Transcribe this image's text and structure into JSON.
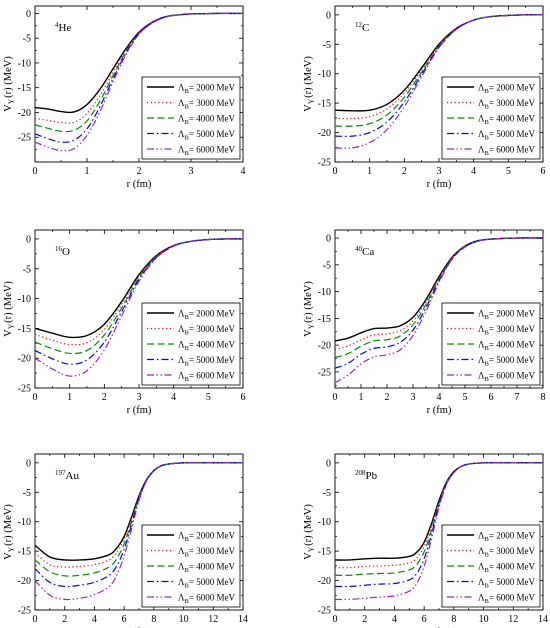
{
  "colors": {
    "axis": "#000000",
    "series": [
      "#000000",
      "#ff0000",
      "#009000",
      "#0000ff",
      "#a020d0"
    ]
  },
  "chart_data": [
    {
      "type": "line",
      "nucleus": {
        "mass": "4",
        "symbol": "He"
      },
      "xlabel": "r  (fm)",
      "ylabel": {
        "main": "V",
        "sub": "Y",
        "rest": "(r)  (MeV)"
      },
      "xlim": [
        0,
        4
      ],
      "ylim": [
        -30,
        1.5
      ],
      "xticks": [
        0,
        1,
        2,
        3,
        4
      ],
      "yticks": [
        0,
        -5,
        -10,
        -15,
        -20,
        -25
      ],
      "legend": {
        "position": "bottom-right"
      },
      "x": [
        0,
        0.25,
        0.5,
        0.75,
        1.0,
        1.25,
        1.5,
        1.75,
        2.0,
        2.25,
        2.5,
        2.75,
        3.0,
        3.5,
        4.0
      ],
      "series": [
        {
          "name": "2000 MeV",
          "values": [
            -19.0,
            -19.3,
            -19.8,
            -19.9,
            -18.4,
            -15.3,
            -11.2,
            -7.1,
            -3.8,
            -1.8,
            -0.7,
            -0.3,
            -0.1,
            0,
            0
          ]
        },
        {
          "name": "3000 MeV",
          "values": [
            -21.2,
            -21.6,
            -22.0,
            -22.0,
            -20.2,
            -16.6,
            -11.9,
            -7.3,
            -3.9,
            -1.8,
            -0.7,
            -0.3,
            -0.1,
            0,
            0
          ]
        },
        {
          "name": "4000 MeV",
          "values": [
            -22.5,
            -23.2,
            -23.8,
            -23.6,
            -21.7,
            -17.7,
            -12.6,
            -7.7,
            -4.0,
            -1.9,
            -0.7,
            -0.3,
            -0.1,
            0,
            0
          ]
        },
        {
          "name": "5000 MeV",
          "values": [
            -24.3,
            -25.3,
            -26.0,
            -25.6,
            -23.3,
            -18.8,
            -13.2,
            -8.0,
            -4.1,
            -1.9,
            -0.7,
            -0.3,
            -0.1,
            0,
            0
          ]
        },
        {
          "name": "6000 MeV",
          "values": [
            -26.0,
            -27.0,
            -27.7,
            -27.3,
            -24.6,
            -19.8,
            -13.8,
            -8.3,
            -4.2,
            -2.0,
            -0.8,
            -0.3,
            -0.1,
            0,
            0
          ]
        }
      ]
    },
    {
      "type": "line",
      "nucleus": {
        "mass": "12",
        "symbol": "C"
      },
      "xlabel": "r  (fm)",
      "ylabel": {
        "main": "V",
        "sub": "Y",
        "rest": "(r)  (MeV)"
      },
      "xlim": [
        0,
        6
      ],
      "ylim": [
        -25,
        1.5
      ],
      "xticks": [
        0,
        1,
        2,
        3,
        4,
        5,
        6
      ],
      "yticks": [
        0,
        -5,
        -10,
        -15,
        -20,
        -25
      ],
      "legend": {
        "position": "bottom-right"
      },
      "x": [
        0,
        0.5,
        1.0,
        1.5,
        2.0,
        2.5,
        3.0,
        3.5,
        4.0,
        4.5,
        5.0,
        5.5,
        6.0
      ],
      "series": [
        {
          "name": "2000 MeV",
          "values": [
            -16.2,
            -16.3,
            -16.2,
            -15.2,
            -12.8,
            -9.0,
            -5.0,
            -2.3,
            -0.9,
            -0.3,
            -0.1,
            0,
            0
          ]
        },
        {
          "name": "3000 MeV",
          "values": [
            -17.6,
            -17.6,
            -17.3,
            -16.0,
            -13.3,
            -9.3,
            -5.1,
            -2.3,
            -0.9,
            -0.3,
            -0.1,
            0,
            0
          ]
        },
        {
          "name": "4000 MeV",
          "values": [
            -18.9,
            -18.9,
            -18.5,
            -17.0,
            -14.0,
            -9.7,
            -5.3,
            -2.4,
            -0.9,
            -0.3,
            -0.1,
            0,
            0
          ]
        },
        {
          "name": "5000 MeV",
          "values": [
            -20.6,
            -20.6,
            -20.0,
            -18.2,
            -14.8,
            -10.1,
            -5.5,
            -2.4,
            -0.9,
            -0.3,
            -0.1,
            0,
            0
          ]
        },
        {
          "name": "6000 MeV",
          "values": [
            -22.6,
            -22.6,
            -21.7,
            -19.5,
            -15.6,
            -10.5,
            -5.6,
            -2.5,
            -0.9,
            -0.3,
            -0.1,
            0,
            0
          ]
        }
      ]
    },
    {
      "type": "line",
      "nucleus": {
        "mass": "16",
        "symbol": "O"
      },
      "xlabel": "r  (fm)",
      "ylabel": {
        "main": "V",
        "sub": "Y",
        "rest": "(r)  (MeV)"
      },
      "xlim": [
        0,
        6
      ],
      "ylim": [
        -25,
        1.5
      ],
      "xticks": [
        0,
        1,
        2,
        3,
        4,
        5,
        6
      ],
      "yticks": [
        0,
        -5,
        -10,
        -15,
        -20,
        -25
      ],
      "legend": {
        "position": "bottom-right"
      },
      "x": [
        0,
        0.5,
        1.0,
        1.5,
        2.0,
        2.5,
        3.0,
        3.5,
        4.0,
        4.5,
        5.0,
        5.5,
        6.0
      ],
      "series": [
        {
          "name": "2000 MeV",
          "values": [
            -15.0,
            -15.8,
            -16.5,
            -16.2,
            -14.3,
            -10.5,
            -6.0,
            -2.8,
            -1.1,
            -0.4,
            -0.1,
            0,
            0
          ]
        },
        {
          "name": "3000 MeV",
          "values": [
            -16.0,
            -17.0,
            -17.7,
            -17.4,
            -15.2,
            -11.0,
            -6.3,
            -2.9,
            -1.1,
            -0.4,
            -0.1,
            0,
            0
          ]
        },
        {
          "name": "4000 MeV",
          "values": [
            -17.3,
            -18.4,
            -19.2,
            -18.7,
            -16.1,
            -11.6,
            -6.5,
            -3.0,
            -1.2,
            -0.4,
            -0.1,
            0,
            0
          ]
        },
        {
          "name": "5000 MeV",
          "values": [
            -18.7,
            -20.1,
            -21.0,
            -20.3,
            -17.3,
            -12.2,
            -6.8,
            -3.1,
            -1.2,
            -0.4,
            -0.1,
            0,
            0
          ]
        },
        {
          "name": "6000 MeV",
          "values": [
            -20.0,
            -21.8,
            -23.0,
            -22.1,
            -18.6,
            -12.9,
            -7.1,
            -3.2,
            -1.2,
            -0.4,
            -0.1,
            0,
            0
          ]
        }
      ]
    },
    {
      "type": "line",
      "nucleus": {
        "mass": "40",
        "symbol": "Ca"
      },
      "xlabel": "r  (fm)",
      "ylabel": {
        "main": "V",
        "sub": "Y",
        "rest": "(r)  (MeV)"
      },
      "xlim": [
        0,
        8
      ],
      "ylim": [
        -28,
        1.5
      ],
      "xticks": [
        0,
        1,
        2,
        3,
        4,
        5,
        6,
        7,
        8
      ],
      "yticks": [
        0,
        -5,
        -10,
        -15,
        -20,
        -25
      ],
      "legend": {
        "position": "bottom-right"
      },
      "x": [
        0,
        0.5,
        1.0,
        1.5,
        2.0,
        2.5,
        3.0,
        3.5,
        4.0,
        4.5,
        5.0,
        5.5,
        6.0,
        7.0,
        8.0
      ],
      "series": [
        {
          "name": "2000 MeV",
          "values": [
            -19.2,
            -18.7,
            -17.7,
            -16.9,
            -16.8,
            -16.4,
            -14.8,
            -11.5,
            -7.2,
            -3.6,
            -1.5,
            -0.5,
            -0.2,
            0,
            0
          ]
        },
        {
          "name": "3000 MeV",
          "values": [
            -20.8,
            -20.2,
            -19.0,
            -18.1,
            -17.9,
            -17.3,
            -15.5,
            -11.9,
            -7.4,
            -3.7,
            -1.6,
            -0.6,
            -0.2,
            0,
            0
          ]
        },
        {
          "name": "4000 MeV",
          "values": [
            -22.3,
            -21.6,
            -20.2,
            -19.2,
            -19.0,
            -18.3,
            -16.2,
            -12.4,
            -7.7,
            -3.8,
            -1.6,
            -0.6,
            -0.2,
            0,
            0
          ]
        },
        {
          "name": "5000 MeV",
          "values": [
            -24.3,
            -23.4,
            -21.7,
            -20.6,
            -20.3,
            -19.5,
            -17.2,
            -13.0,
            -8.0,
            -3.9,
            -1.6,
            -0.6,
            -0.2,
            0,
            0
          ]
        },
        {
          "name": "6000 MeV",
          "values": [
            -27.0,
            -25.6,
            -23.5,
            -22.2,
            -21.8,
            -20.9,
            -18.2,
            -13.7,
            -8.3,
            -4.0,
            -1.7,
            -0.6,
            -0.2,
            0,
            0
          ]
        }
      ]
    },
    {
      "type": "line",
      "nucleus": {
        "mass": "197",
        "symbol": "Au"
      },
      "xlabel": "r  (fm)",
      "ylabel": {
        "main": "V",
        "sub": "Y",
        "rest": "(r)  (MeV)"
      },
      "xlim": [
        0,
        14
      ],
      "ylim": [
        -25,
        1.5
      ],
      "xticks": [
        0,
        2,
        4,
        6,
        8,
        10,
        12,
        14
      ],
      "yticks": [
        0,
        -5,
        -10,
        -15,
        -20,
        -25
      ],
      "legend": {
        "position": "bottom-right"
      },
      "x": [
        0,
        1,
        2,
        3,
        4,
        5,
        5.5,
        6,
        6.5,
        7,
        7.5,
        8,
        8.5,
        9,
        10,
        11,
        12,
        14
      ],
      "series": [
        {
          "name": "2000 MeV",
          "values": [
            -14.0,
            -16.0,
            -16.5,
            -16.5,
            -16.3,
            -15.6,
            -14.5,
            -12.5,
            -9.2,
            -5.6,
            -2.9,
            -1.3,
            -0.5,
            -0.2,
            0,
            0,
            0,
            0
          ]
        },
        {
          "name": "3000 MeV",
          "values": [
            -15.3,
            -17.3,
            -17.7,
            -17.6,
            -17.3,
            -16.5,
            -15.2,
            -13.0,
            -9.5,
            -5.7,
            -2.9,
            -1.3,
            -0.5,
            -0.2,
            0,
            0,
            0,
            0
          ]
        },
        {
          "name": "4000 MeV",
          "values": [
            -16.5,
            -18.5,
            -19.2,
            -19.1,
            -18.7,
            -17.7,
            -16.3,
            -13.8,
            -10.0,
            -5.9,
            -3.0,
            -1.3,
            -0.5,
            -0.2,
            0,
            0,
            0,
            0
          ]
        },
        {
          "name": "5000 MeV",
          "values": [
            -18.0,
            -20.3,
            -21.0,
            -20.8,
            -20.3,
            -19.1,
            -17.5,
            -14.7,
            -10.5,
            -6.1,
            -3.0,
            -1.4,
            -0.5,
            -0.2,
            0,
            0,
            0,
            0
          ]
        },
        {
          "name": "6000 MeV",
          "values": [
            -20.0,
            -22.5,
            -23.2,
            -23.0,
            -22.4,
            -21.0,
            -19.1,
            -15.8,
            -11.2,
            -6.4,
            -3.1,
            -1.4,
            -0.5,
            -0.2,
            0,
            0,
            0,
            0
          ]
        }
      ]
    },
    {
      "type": "line",
      "nucleus": {
        "mass": "208",
        "symbol": "Pb"
      },
      "xlabel": "r  (fm)",
      "ylabel": {
        "main": "V",
        "sub": "Y",
        "rest": "(r)  (MeV)"
      },
      "xlim": [
        0,
        14
      ],
      "ylim": [
        -25,
        1.5
      ],
      "xticks": [
        0,
        2,
        4,
        6,
        8,
        10,
        12,
        14
      ],
      "yticks": [
        0,
        -5,
        -10,
        -15,
        -20,
        -25
      ],
      "legend": {
        "position": "bottom-right"
      },
      "x": [
        0,
        1,
        2,
        3,
        4,
        5,
        5.5,
        6,
        6.5,
        7,
        7.5,
        8,
        8.5,
        9,
        10,
        11,
        12,
        14
      ],
      "series": [
        {
          "name": "2000 MeV",
          "values": [
            -16.5,
            -16.5,
            -16.3,
            -16.2,
            -16.2,
            -15.9,
            -15.2,
            -13.5,
            -10.3,
            -6.4,
            -3.3,
            -1.5,
            -0.6,
            -0.2,
            0,
            0,
            0,
            0
          ]
        },
        {
          "name": "3000 MeV",
          "values": [
            -17.8,
            -17.8,
            -17.6,
            -17.5,
            -17.4,
            -17.0,
            -16.2,
            -14.2,
            -10.8,
            -6.6,
            -3.4,
            -1.5,
            -0.6,
            -0.2,
            0,
            0,
            0,
            0
          ]
        },
        {
          "name": "4000 MeV",
          "values": [
            -19.1,
            -19.1,
            -18.9,
            -18.8,
            -18.7,
            -18.2,
            -17.3,
            -15.1,
            -11.4,
            -6.9,
            -3.5,
            -1.6,
            -0.6,
            -0.2,
            0,
            0,
            0,
            0
          ]
        },
        {
          "name": "5000 MeV",
          "values": [
            -21.0,
            -21.0,
            -20.8,
            -20.6,
            -20.5,
            -19.9,
            -18.8,
            -16.3,
            -12.1,
            -7.2,
            -3.6,
            -1.6,
            -0.6,
            -0.2,
            0,
            0,
            0,
            0
          ]
        },
        {
          "name": "6000 MeV",
          "values": [
            -23.2,
            -23.2,
            -23.0,
            -22.8,
            -22.6,
            -21.8,
            -20.5,
            -17.6,
            -12.9,
            -7.6,
            -3.7,
            -1.7,
            -0.6,
            -0.2,
            0,
            0,
            0,
            0
          ]
        }
      ]
    }
  ]
}
